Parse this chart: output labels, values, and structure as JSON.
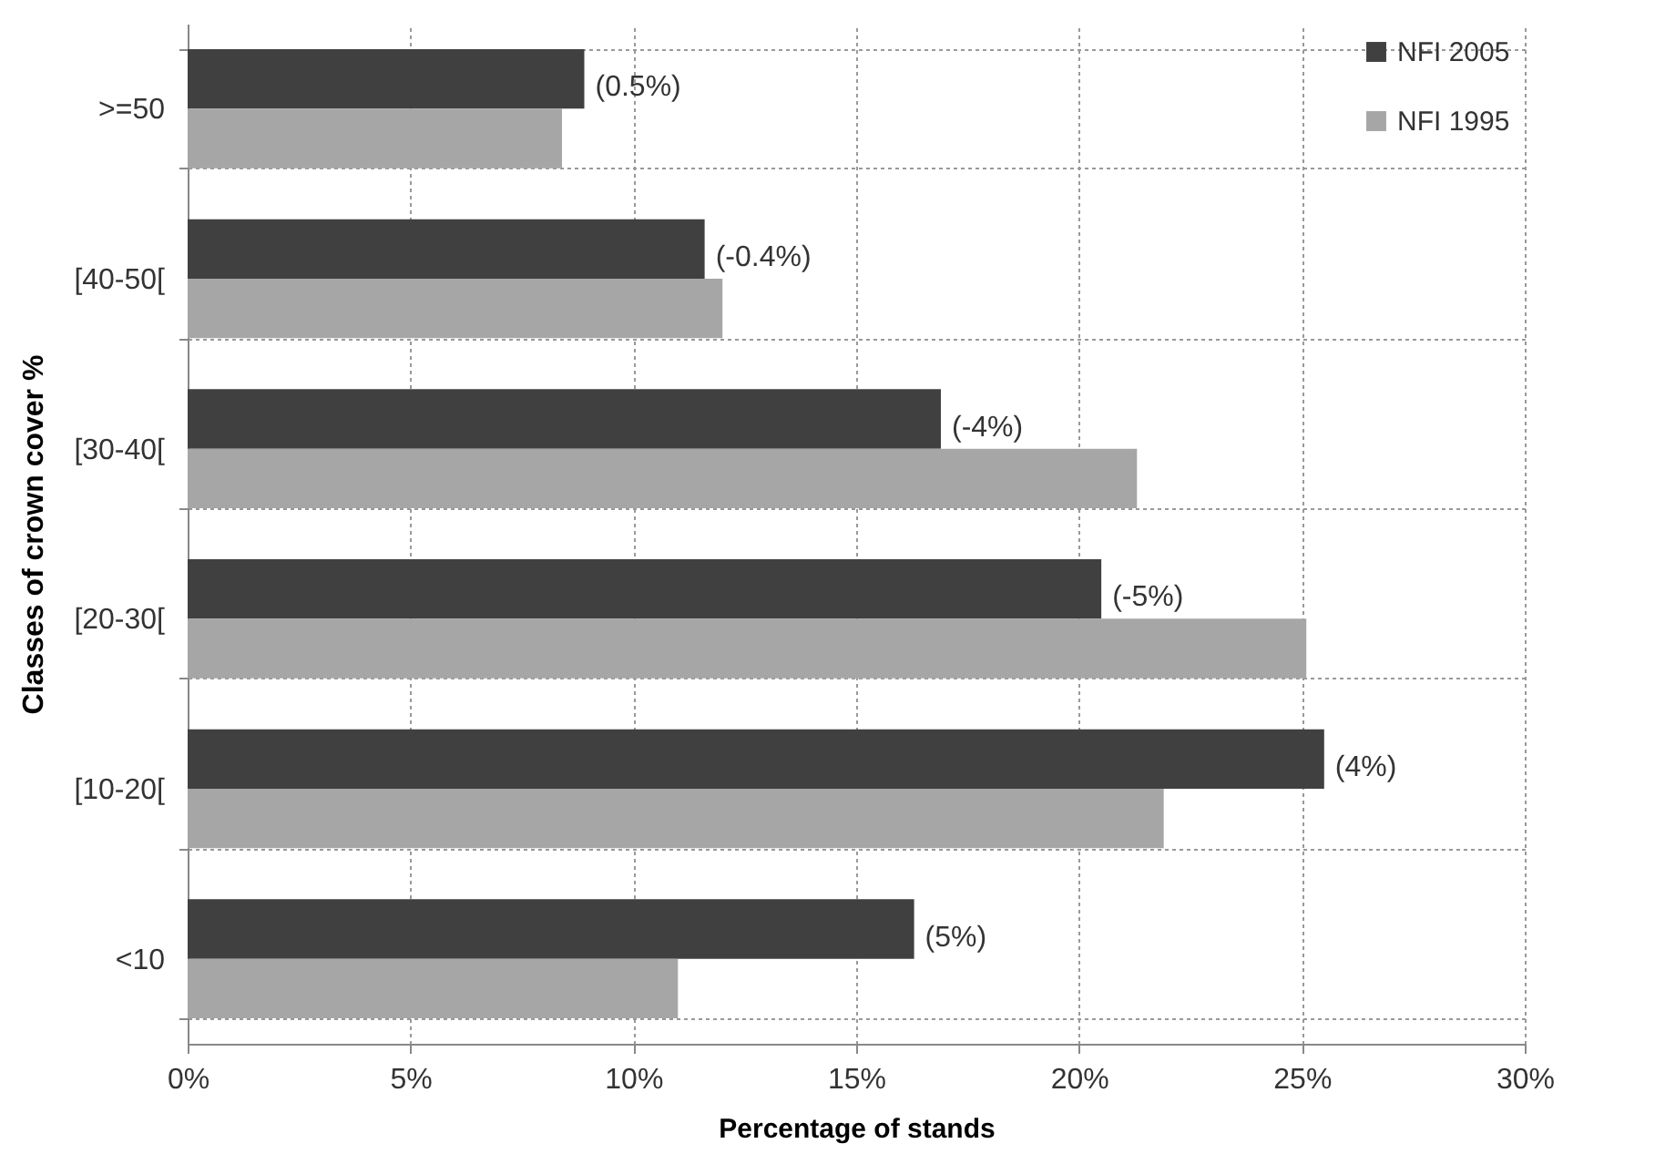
{
  "chart_data": {
    "type": "bar",
    "orientation": "horizontal",
    "xlabel": "Percentage of stands",
    "ylabel": "Classes of crown cover %",
    "categories": [
      ">=50",
      "[40-50[",
      "[30-40[",
      "[20-30[",
      "[10-20[",
      "<10"
    ],
    "series": [
      {
        "name": "NFI 2005",
        "color": "#404040",
        "values": [
          8.9,
          11.6,
          16.9,
          20.5,
          25.5,
          16.3
        ]
      },
      {
        "name": "NFI 1995",
        "color": "#a6a6a6",
        "values": [
          8.4,
          12.0,
          21.3,
          25.1,
          21.9,
          11.0
        ]
      }
    ],
    "xlim": [
      0,
      30
    ],
    "xticks": [
      {
        "value": 0,
        "label": "0%"
      },
      {
        "value": 5,
        "label": "5%"
      },
      {
        "value": 10,
        "label": "10%"
      },
      {
        "value": 15,
        "label": "15%"
      },
      {
        "value": 20,
        "label": "20%"
      },
      {
        "value": 25,
        "label": "25%"
      },
      {
        "value": 30,
        "label": "30%"
      }
    ],
    "annotations": [
      {
        "text": "(0.5%)",
        "x": 8.9,
        "y": ">=50"
      },
      {
        "text": "(-0.4%)",
        "x": 11.6,
        "y": "[40-50["
      },
      {
        "text": "(-4%)",
        "x": 16.9,
        "y": "[30-40["
      },
      {
        "text": "(-5%)",
        "x": 20.5,
        "y": "[20-30["
      },
      {
        "text": "(4%)",
        "x": 25.5,
        "y": "[10-20["
      },
      {
        "text": "(5%)",
        "x": 16.3,
        "y": "<10"
      }
    ],
    "grid": true,
    "legend": "top right"
  }
}
